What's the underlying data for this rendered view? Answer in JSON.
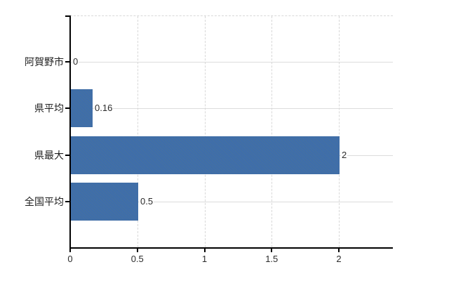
{
  "chart_data": {
    "type": "bar",
    "orientation": "horizontal",
    "title": "",
    "xlabel": "",
    "ylabel": "",
    "categories": [
      "阿賀野市",
      "県平均",
      "県最大",
      "全国平均"
    ],
    "values": [
      0,
      0.16,
      2,
      0.5
    ],
    "value_labels": [
      "0",
      "0.16",
      "2",
      "0.5"
    ],
    "xticks": [
      0,
      0.5,
      1,
      1.5,
      2
    ],
    "xtick_labels": [
      "0",
      "0.5",
      "1",
      "1.5",
      "2"
    ],
    "xlim": [
      0,
      2.4
    ],
    "grid": true,
    "legend": false,
    "colors": {
      "bar": "#3e6dab",
      "grid": "#dcdcdc",
      "grid_dashed": "#d8d8d8",
      "axis": "#000000",
      "tick_text": "#2b2b2b",
      "category_text": "#1f1f1f",
      "background": "#ffffff"
    }
  }
}
